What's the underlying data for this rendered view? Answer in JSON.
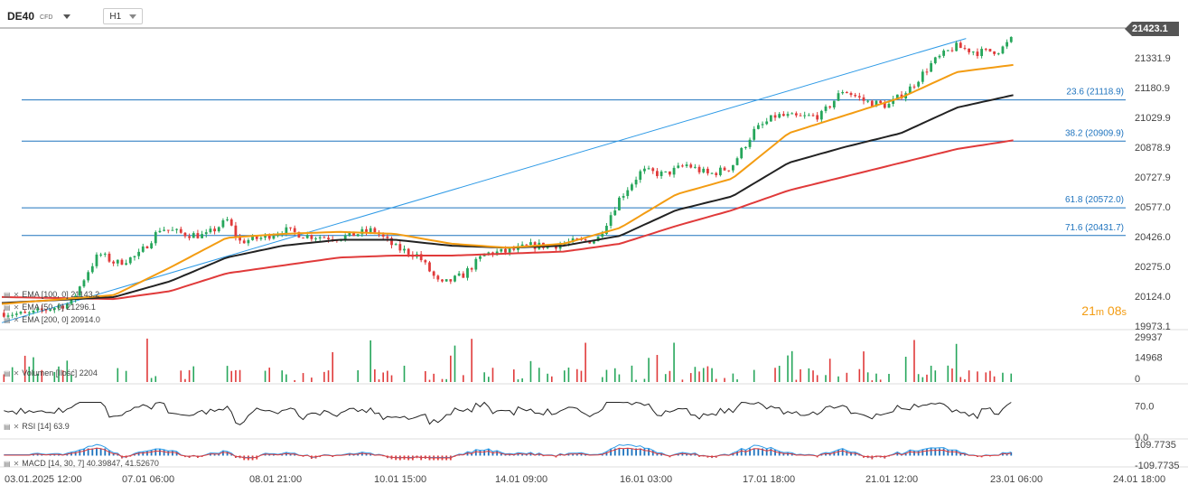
{
  "header": {
    "symbol": "DE40",
    "symbol_type": "CFD",
    "timeframe": "H1"
  },
  "current_price": "21423.1",
  "countdown": {
    "min": "21",
    "min_unit": "m",
    "sec": "08",
    "sec_unit": "s"
  },
  "indicators": {
    "ema100": "EMA [100, 0] 21143.2",
    "ema50": "EMA [50, 0] 21296.1",
    "ema200": "EMA [200, 0] 20914.0",
    "volume": "Volumen [Ilość] 2204",
    "rsi": "RSI [14] 63.9",
    "macd": "MACD [14, 30, 7] 40.39847, 41.52670"
  },
  "colors": {
    "up": "#26a65b",
    "down": "#e03a3a",
    "ema50": "#f39c12",
    "ema100": "#222222",
    "ema200": "#e03a3a",
    "fib": "#1e73be",
    "trendline": "#2e9ae6"
  },
  "chart_data": [
    {
      "type": "candlestick",
      "title": "DE40",
      "y_axis_ticks": [
        "21331.9",
        "21180.9",
        "21029.9",
        "20878.9",
        "20727.9",
        "20577.0",
        "20426.0",
        "20275.0",
        "20124.0",
        "19973.1"
      ],
      "ylim": [
        19973.1,
        21483.0
      ],
      "x_axis_ticks": [
        "03.01.2025 12:00",
        "07.01 06:00",
        "08.01 21:00",
        "10.01 15:00",
        "14.01 09:00",
        "16.01 03:00",
        "17.01 18:00",
        "21.01 12:00",
        "23.01 06:00",
        "24.01 18:00"
      ],
      "fibonacci_levels": [
        {
          "label": "23.6 (21118.9)",
          "value": 21118.9
        },
        {
          "label": "38.2 (20909.9)",
          "value": 20909.9
        },
        {
          "label": "61.8 (20572.0)",
          "value": 20572.0
        },
        {
          "label": "71.6 (20431.7)",
          "value": 20431.7
        }
      ],
      "horizontal_line": 21423.1,
      "trendline": [
        [
          0.0,
          19990.0
        ],
        [
          0.858,
          21430.0
        ]
      ],
      "close_anchors": [
        [
          0.0,
          20040
        ],
        [
          0.02,
          20030
        ],
        [
          0.04,
          20060
        ],
        [
          0.06,
          20090
        ],
        [
          0.075,
          20250
        ],
        [
          0.085,
          20340
        ],
        [
          0.1,
          20290
        ],
        [
          0.12,
          20330
        ],
        [
          0.14,
          20470
        ],
        [
          0.16,
          20440
        ],
        [
          0.18,
          20430
        ],
        [
          0.2,
          20510
        ],
        [
          0.21,
          20400
        ],
        [
          0.23,
          20420
        ],
        [
          0.25,
          20460
        ],
        [
          0.27,
          20430
        ],
        [
          0.3,
          20420
        ],
        [
          0.33,
          20460
        ],
        [
          0.35,
          20370
        ],
        [
          0.37,
          20330
        ],
        [
          0.39,
          20180
        ],
        [
          0.41,
          20230
        ],
        [
          0.43,
          20340
        ],
        [
          0.45,
          20350
        ],
        [
          0.47,
          20380
        ],
        [
          0.49,
          20380
        ],
        [
          0.51,
          20400
        ],
        [
          0.53,
          20410
        ],
        [
          0.55,
          20620
        ],
        [
          0.57,
          20760
        ],
        [
          0.59,
          20740
        ],
        [
          0.61,
          20790
        ],
        [
          0.63,
          20740
        ],
        [
          0.65,
          20780
        ],
        [
          0.67,
          20960
        ],
        [
          0.69,
          21040
        ],
        [
          0.71,
          21030
        ],
        [
          0.73,
          21040
        ],
        [
          0.75,
          21170
        ],
        [
          0.77,
          21110
        ],
        [
          0.79,
          21090
        ],
        [
          0.81,
          21180
        ],
        [
          0.83,
          21310
        ],
        [
          0.85,
          21390
        ],
        [
          0.87,
          21360
        ],
        [
          0.89,
          21370
        ],
        [
          0.9,
          21423
        ]
      ],
      "ema50": [
        [
          0.0,
          20085
        ],
        [
          0.1,
          20130
        ],
        [
          0.15,
          20270
        ],
        [
          0.2,
          20420
        ],
        [
          0.25,
          20440
        ],
        [
          0.3,
          20450
        ],
        [
          0.35,
          20440
        ],
        [
          0.4,
          20390
        ],
        [
          0.45,
          20370
        ],
        [
          0.5,
          20390
        ],
        [
          0.55,
          20470
        ],
        [
          0.6,
          20640
        ],
        [
          0.65,
          20720
        ],
        [
          0.7,
          20950
        ],
        [
          0.75,
          21040
        ],
        [
          0.8,
          21130
        ],
        [
          0.85,
          21260
        ],
        [
          0.9,
          21296
        ]
      ],
      "ema100": [
        [
          0.0,
          20090
        ],
        [
          0.1,
          20120
        ],
        [
          0.15,
          20200
        ],
        [
          0.2,
          20320
        ],
        [
          0.25,
          20380
        ],
        [
          0.3,
          20410
        ],
        [
          0.35,
          20410
        ],
        [
          0.4,
          20380
        ],
        [
          0.45,
          20370
        ],
        [
          0.5,
          20380
        ],
        [
          0.55,
          20430
        ],
        [
          0.6,
          20560
        ],
        [
          0.65,
          20630
        ],
        [
          0.7,
          20800
        ],
        [
          0.75,
          20880
        ],
        [
          0.8,
          20950
        ],
        [
          0.85,
          21080
        ],
        [
          0.9,
          21143
        ]
      ],
      "ema200": [
        [
          0.0,
          20120
        ],
        [
          0.1,
          20110
        ],
        [
          0.15,
          20150
        ],
        [
          0.2,
          20240
        ],
        [
          0.25,
          20280
        ],
        [
          0.3,
          20320
        ],
        [
          0.35,
          20330
        ],
        [
          0.4,
          20330
        ],
        [
          0.45,
          20340
        ],
        [
          0.5,
          20350
        ],
        [
          0.55,
          20390
        ],
        [
          0.6,
          20480
        ],
        [
          0.65,
          20560
        ],
        [
          0.7,
          20660
        ],
        [
          0.75,
          20730
        ],
        [
          0.8,
          20800
        ],
        [
          0.85,
          20870
        ],
        [
          0.9,
          20914
        ]
      ]
    },
    {
      "type": "bar",
      "title": "Volume",
      "y_axis_ticks": [
        "29937",
        "14968",
        "0"
      ],
      "ylim": [
        0,
        29937
      ]
    },
    {
      "type": "line",
      "title": "RSI",
      "y_axis_ticks": [
        "70.0",
        "0.0"
      ],
      "ylim": [
        0,
        100
      ]
    },
    {
      "type": "bar",
      "title": "MACD",
      "y_axis_ticks": [
        "109.7735",
        "-109.7735"
      ],
      "ylim": [
        -109.7735,
        109.7735
      ]
    }
  ]
}
